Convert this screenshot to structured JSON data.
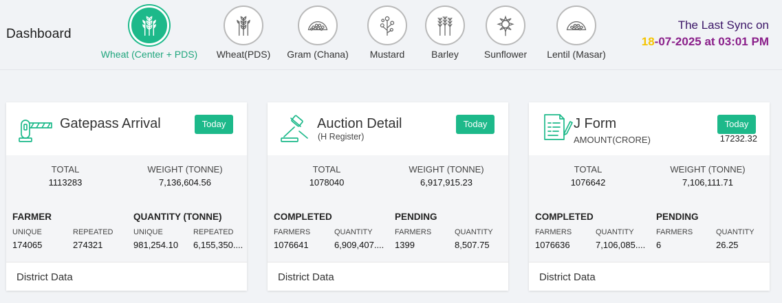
{
  "header": {
    "title": "Dashboard"
  },
  "crops": [
    {
      "label": "Wheat (Center + PDS)",
      "icon": "wheat-icon",
      "active": true
    },
    {
      "label": "Wheat(PDS)",
      "icon": "wheat-icon",
      "active": false
    },
    {
      "label": "Gram (Chana)",
      "icon": "grain-pile-icon",
      "active": false
    },
    {
      "label": "Mustard",
      "icon": "mustard-plant-icon",
      "active": false
    },
    {
      "label": "Barley",
      "icon": "barley-icon",
      "active": false
    },
    {
      "label": "Sunflower",
      "icon": "sunflower-icon",
      "active": false
    },
    {
      "label": "Lentil (Masar)",
      "icon": "grain-pile-icon",
      "active": false
    }
  ],
  "sync": {
    "label": "The Last Sync on",
    "date_day": "18",
    "date_rest": "-07-2025 at 03:01 PM"
  },
  "colors": {
    "accent": "#1db98a",
    "sync_label": "#3a1466",
    "sync_date": "#8a1f8a",
    "sync_day": "#f5c400"
  },
  "cards": {
    "gatepass": {
      "title": "Gatepass Arrival",
      "icon": "barrier-gate-icon",
      "today_label": "Today",
      "total_label": "TOTAL",
      "total_value": "1113283",
      "weight_label": "WEIGHT (TONNE)",
      "weight_value": "7,136,604.56",
      "left_section": "FARMER",
      "right_section": "QUANTITY (TONNE)",
      "farmer_unique_label": "UNIQUE",
      "farmer_unique_value": "174065",
      "farmer_repeated_label": "REPEATED",
      "farmer_repeated_value": "274321",
      "qty_unique_label": "UNIQUE",
      "qty_unique_value": "981,254.10",
      "qty_repeated_label": "REPEATED",
      "qty_repeated_value": "6,155,350....",
      "footer": "District Data"
    },
    "auction": {
      "title": "Auction Detail",
      "subtitle": "(H Register)",
      "icon": "gavel-icon",
      "today_label": "Today",
      "total_label": "TOTAL",
      "total_value": "1078040",
      "weight_label": "WEIGHT (TONNE)",
      "weight_value": "6,917,915.23",
      "left_section": "COMPLETED",
      "right_section": "PENDING",
      "c_farmers_label": "FARMERS",
      "c_farmers_value": "1076641",
      "c_qty_label": "QUANTITY",
      "c_qty_value": "6,909,407....",
      "p_farmers_label": "FARMERS",
      "p_farmers_value": "1399",
      "p_qty_label": "QUANTITY",
      "p_qty_value": "8,507.75",
      "footer": "District Data"
    },
    "jform": {
      "title": "J Form",
      "subtitle": "AMOUNT(CRORE)",
      "amount_value": "17232.32",
      "icon": "form-document-icon",
      "today_label": "Today",
      "total_label": "TOTAL",
      "total_value": "1076642",
      "weight_label": "WEIGHT (TONNE)",
      "weight_value": "7,106,111.71",
      "left_section": "COMPLETED",
      "right_section": "PENDING",
      "c_farmers_label": "FARMERS",
      "c_farmers_value": "1076636",
      "c_qty_label": "QUANTITY",
      "c_qty_value": "7,106,085....",
      "p_farmers_label": "FARMERS",
      "p_farmers_value": "6",
      "p_qty_label": "QUANTITY",
      "p_qty_value": "26.25",
      "footer": "District Data"
    }
  }
}
